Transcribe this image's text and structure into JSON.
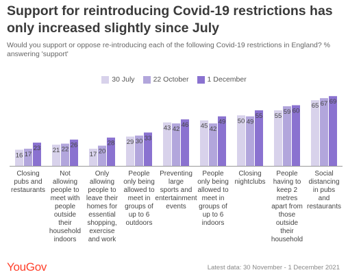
{
  "title": "Support for reintroducing Covid-19 restrictions has only increased slightly since July",
  "subtitle": "Would you support or oppose re-introducing each of the following Covid-19 restrictions in England? % answering 'support'",
  "logo": "YouGov",
  "footer": "Latest data: 30 November - 1 December 2021",
  "colors": {
    "series": [
      "#d8d2eb",
      "#b2a6dc",
      "#8a72d0"
    ],
    "baseline": "#999999"
  },
  "chart_data": {
    "type": "bar",
    "title": "Support for reintroducing Covid-19 restrictions has only increased slightly since July",
    "categories": [
      "Closing pubs and restaurants",
      "Not allowing people to meet with people outside their household indoors",
      "Only allowing people to leave their homes for essential shopping, exercise and work",
      "People only being allowed to meet in groups of up to 6 outdoors",
      "Preventing large sports and entertainment events",
      "People only being allowed to meet in groups of up to 6 indoors",
      "Closing nightclubs",
      "People having to keep 2 metres apart from those outside their household",
      "Social distancing in pubs and restaurants"
    ],
    "category_lines": [
      [
        "Closing",
        "pubs and",
        "restaurants"
      ],
      [
        "Not",
        "allowing",
        "people to",
        "meet with",
        "people",
        "outside",
        "their",
        "household",
        "indoors"
      ],
      [
        "Only",
        "allowing",
        "people to",
        "leave their",
        "homes for",
        "essential",
        "shopping,",
        "exercise",
        "and work"
      ],
      [
        "People",
        "only being",
        "allowed to",
        "meet in",
        "groups of",
        "up to 6",
        "outdoors"
      ],
      [
        "Preventing",
        "large",
        "sports and",
        "entertainment",
        "events"
      ],
      [
        "People",
        "only being",
        "allowed to",
        "meet in",
        "groups of",
        "up to 6",
        "indoors"
      ],
      [
        "Closing",
        "nightclubs"
      ],
      [
        "People",
        "having to",
        "keep 2",
        "metres",
        "apart from",
        "those",
        "outside",
        "their",
        "household"
      ],
      [
        "Social",
        "distancing",
        "in pubs",
        "and",
        "restaurants"
      ]
    ],
    "series": [
      {
        "name": "30 July",
        "values": [
          16,
          21,
          17,
          29,
          43,
          45,
          50,
          55,
          65
        ]
      },
      {
        "name": "22 October",
        "values": [
          17,
          22,
          20,
          30,
          42,
          42,
          49,
          59,
          67
        ]
      },
      {
        "name": "1 December",
        "values": [
          23,
          26,
          28,
          33,
          46,
          49,
          55,
          60,
          69
        ]
      }
    ],
    "ylim": [
      0,
      80
    ],
    "grid": false,
    "legend": "top-center",
    "xlabel": "",
    "ylabel": ""
  }
}
